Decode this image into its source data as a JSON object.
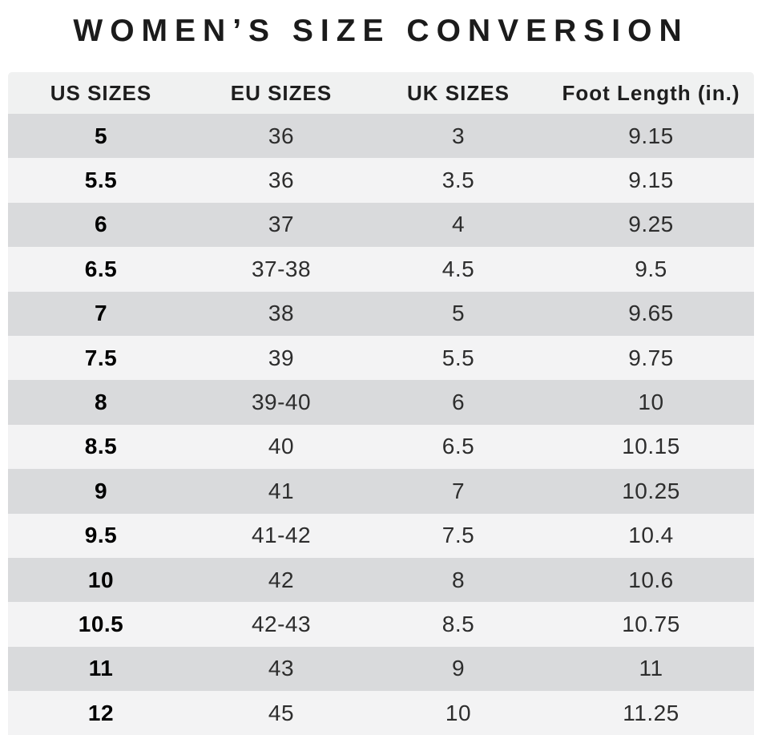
{
  "title": "WOMEN’S SIZE CONVERSION",
  "colors": {
    "background": "#ffffff",
    "header_bg": "#f0f1f1",
    "row_dark": "#d9dadc",
    "row_light": "#f3f3f4",
    "title_text": "#1b1b1b",
    "cell_text": "#2d2d2d",
    "us_size_text": "#000000"
  },
  "chart_data": {
    "type": "table",
    "title": "WOMEN’S SIZE CONVERSION",
    "columns": [
      "US SIZES",
      "EU SIZES",
      "UK SIZES",
      "Foot Length (in.)"
    ],
    "rows": [
      [
        "5",
        "36",
        "3",
        "9.15"
      ],
      [
        "5.5",
        "36",
        "3.5",
        "9.15"
      ],
      [
        "6",
        "37",
        "4",
        "9.25"
      ],
      [
        "6.5",
        "37-38",
        "4.5",
        "9.5"
      ],
      [
        "7",
        "38",
        "5",
        "9.65"
      ],
      [
        "7.5",
        "39",
        "5.5",
        "9.75"
      ],
      [
        "8",
        "39-40",
        "6",
        "10"
      ],
      [
        "8.5",
        "40",
        "6.5",
        "10.15"
      ],
      [
        "9",
        "41",
        "7",
        "10.25"
      ],
      [
        "9.5",
        "41-42",
        "7.5",
        "10.4"
      ],
      [
        "10",
        "42",
        "8",
        "10.6"
      ],
      [
        "10.5",
        "42-43",
        "8.5",
        "10.75"
      ],
      [
        "11",
        "43",
        "9",
        "11"
      ],
      [
        "12",
        "45",
        "10",
        "11.25"
      ]
    ],
    "layout": {
      "striping": "odd rows dark, even rows light",
      "alignment": "all columns centered",
      "first_column_bold": true,
      "grid": false,
      "legend": "none"
    }
  }
}
